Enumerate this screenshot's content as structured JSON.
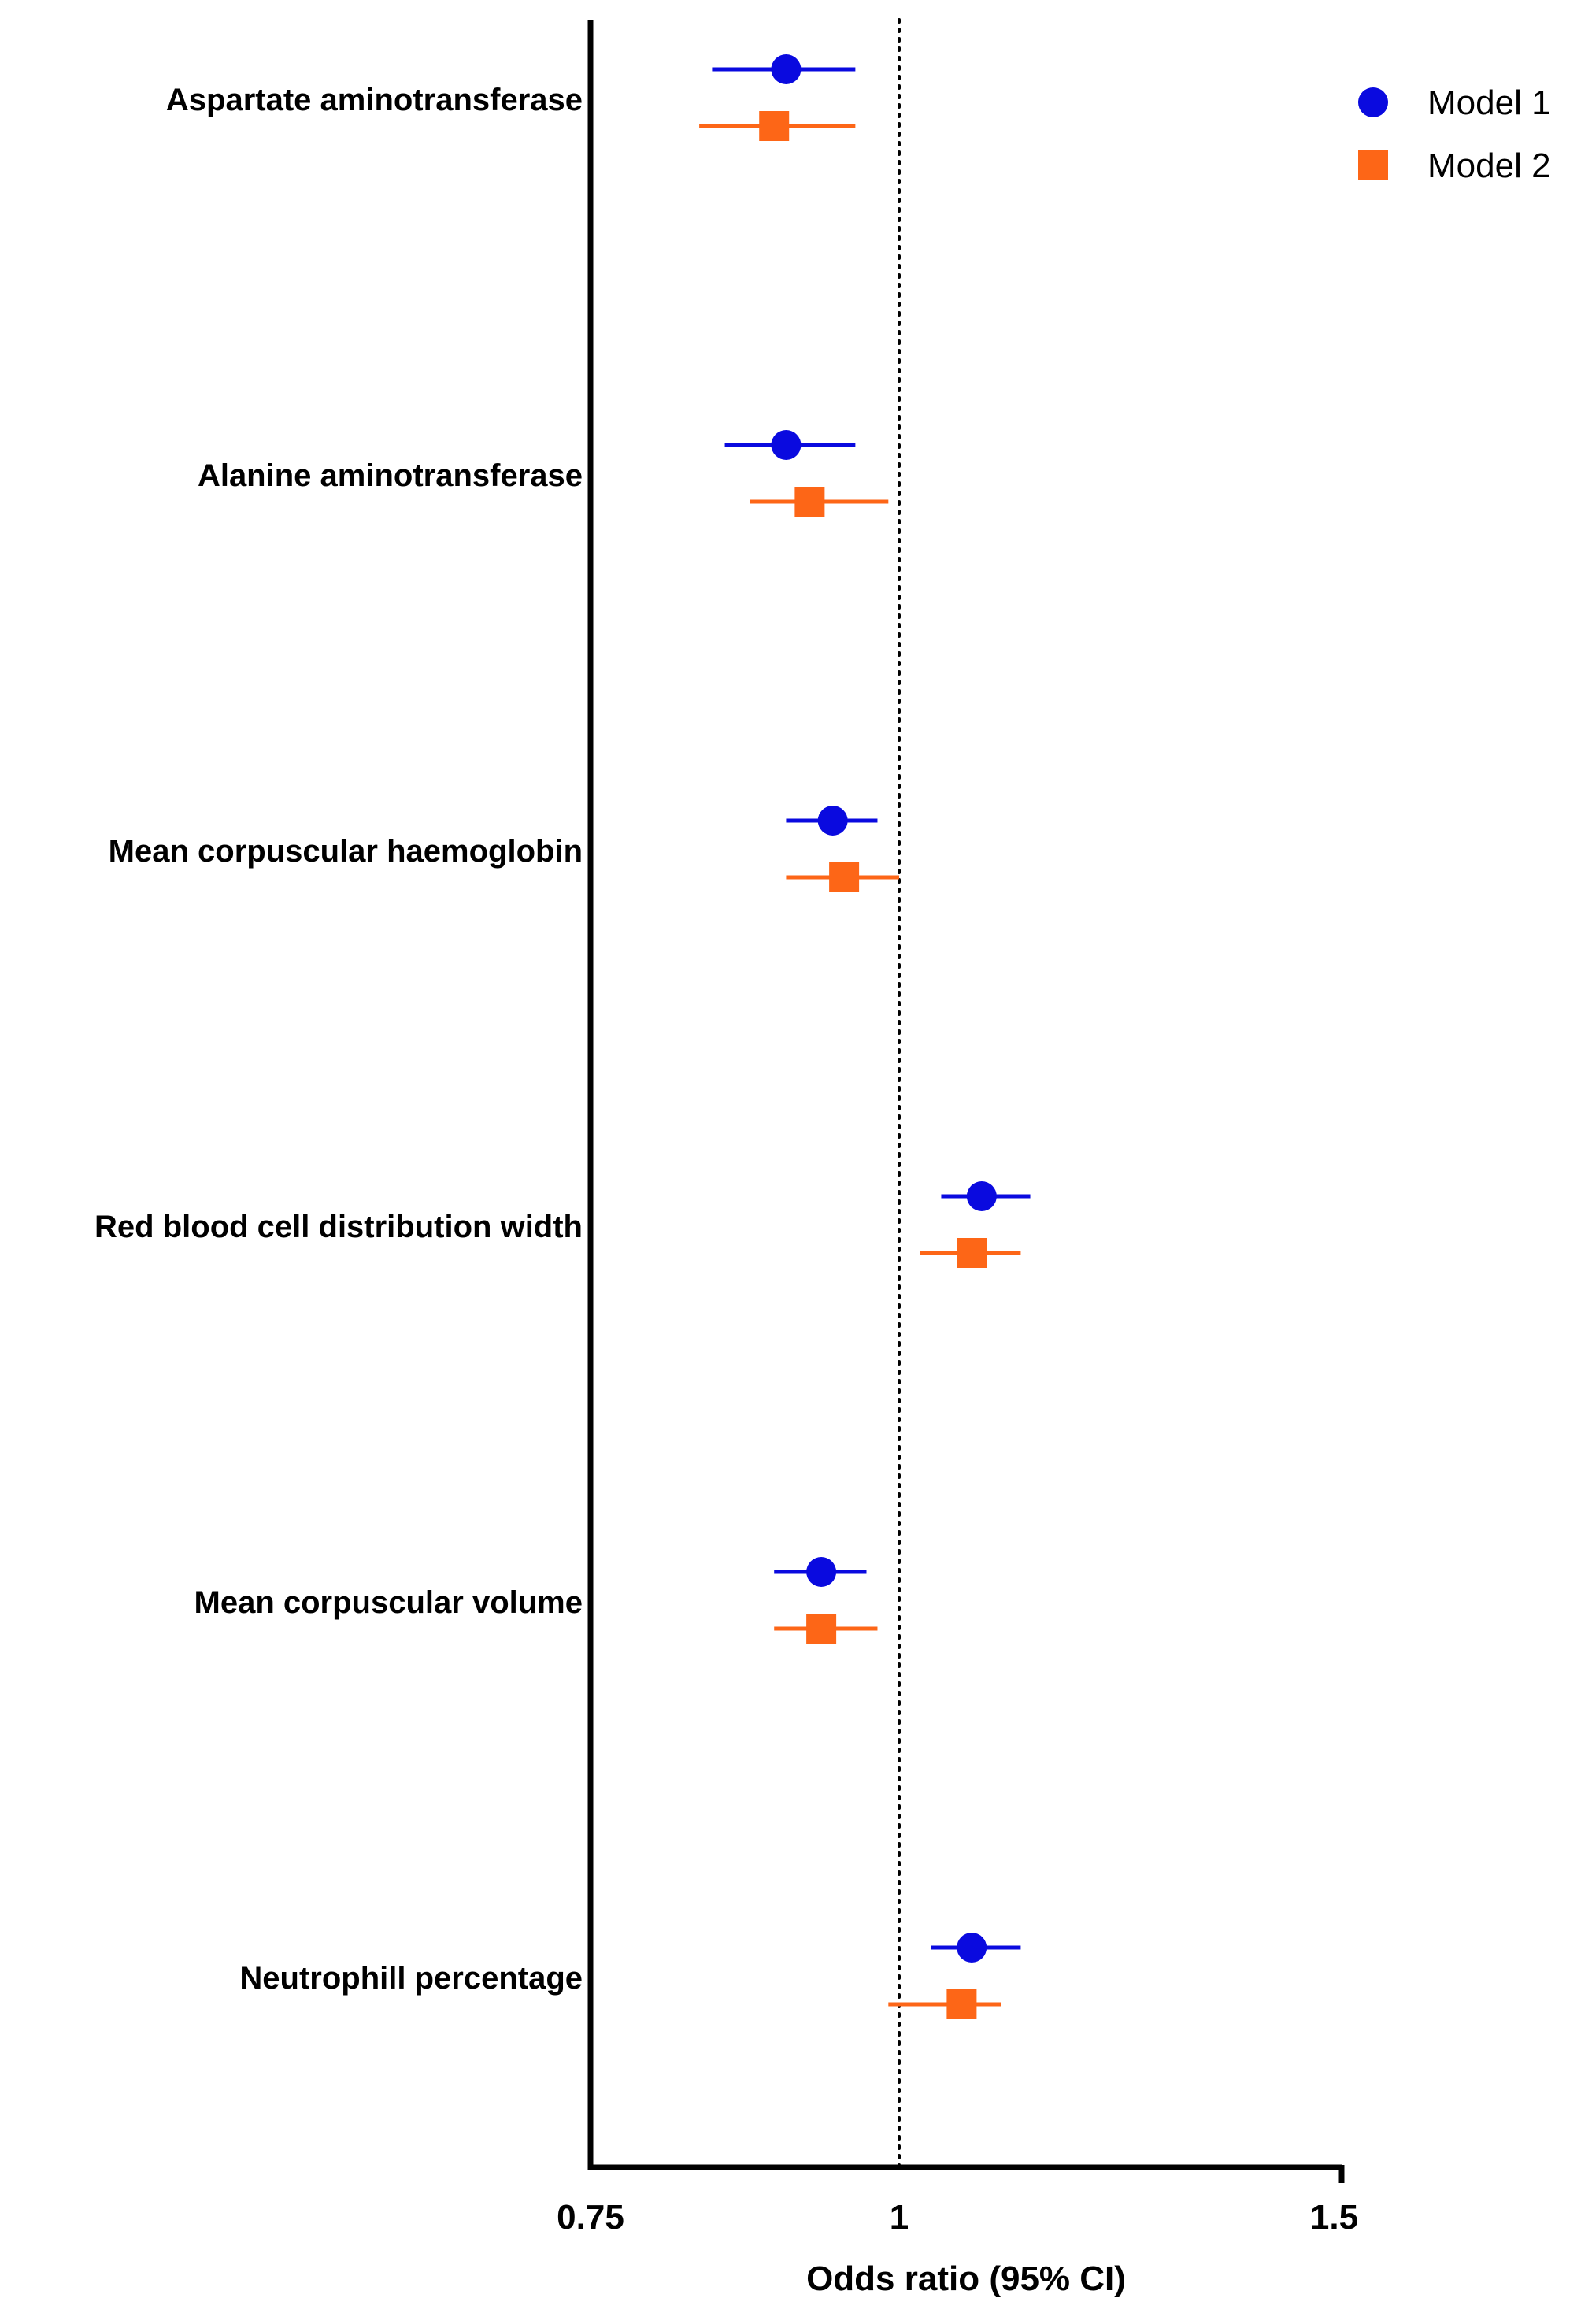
{
  "chart_data": {
    "type": "forest",
    "xlabel": "Odds ratio (95% CI)",
    "xlim": [
      0.75,
      1.57
    ],
    "x_scale": "log",
    "ticks": [
      {
        "value": 0.75,
        "label": "0.75"
      },
      {
        "value": 1.0,
        "label": "1"
      },
      {
        "value": 1.5,
        "label": "1.5"
      }
    ],
    "reference_line": 1.0,
    "legend_position": "top-right",
    "categories": [
      "Aspartate aminotransferase",
      "Alanine aminotransferase",
      "Mean corpuscular haemoglobin",
      "Red blood cell distribution width",
      "Mean corpuscular volume",
      "Neutrophill percentage"
    ],
    "series": [
      {
        "name": "Model 1",
        "marker": "circle",
        "color": "#0a0adf",
        "points": [
          {
            "or": 0.9,
            "lo": 0.84,
            "hi": 0.96
          },
          {
            "or": 0.9,
            "lo": 0.85,
            "hi": 0.96
          },
          {
            "or": 0.94,
            "lo": 0.9,
            "hi": 0.98
          },
          {
            "or": 1.08,
            "lo": 1.04,
            "hi": 1.13
          },
          {
            "or": 0.93,
            "lo": 0.89,
            "hi": 0.97
          },
          {
            "or": 1.07,
            "lo": 1.03,
            "hi": 1.12
          }
        ]
      },
      {
        "name": "Model 2",
        "marker": "square",
        "color": "#fd6617",
        "points": [
          {
            "or": 0.89,
            "lo": 0.83,
            "hi": 0.96
          },
          {
            "or": 0.92,
            "lo": 0.87,
            "hi": 0.99
          },
          {
            "or": 0.95,
            "lo": 0.9,
            "hi": 1.0
          },
          {
            "or": 1.07,
            "lo": 1.02,
            "hi": 1.12
          },
          {
            "or": 0.93,
            "lo": 0.89,
            "hi": 0.98
          },
          {
            "or": 1.06,
            "lo": 0.99,
            "hi": 1.1
          }
        ]
      }
    ]
  }
}
